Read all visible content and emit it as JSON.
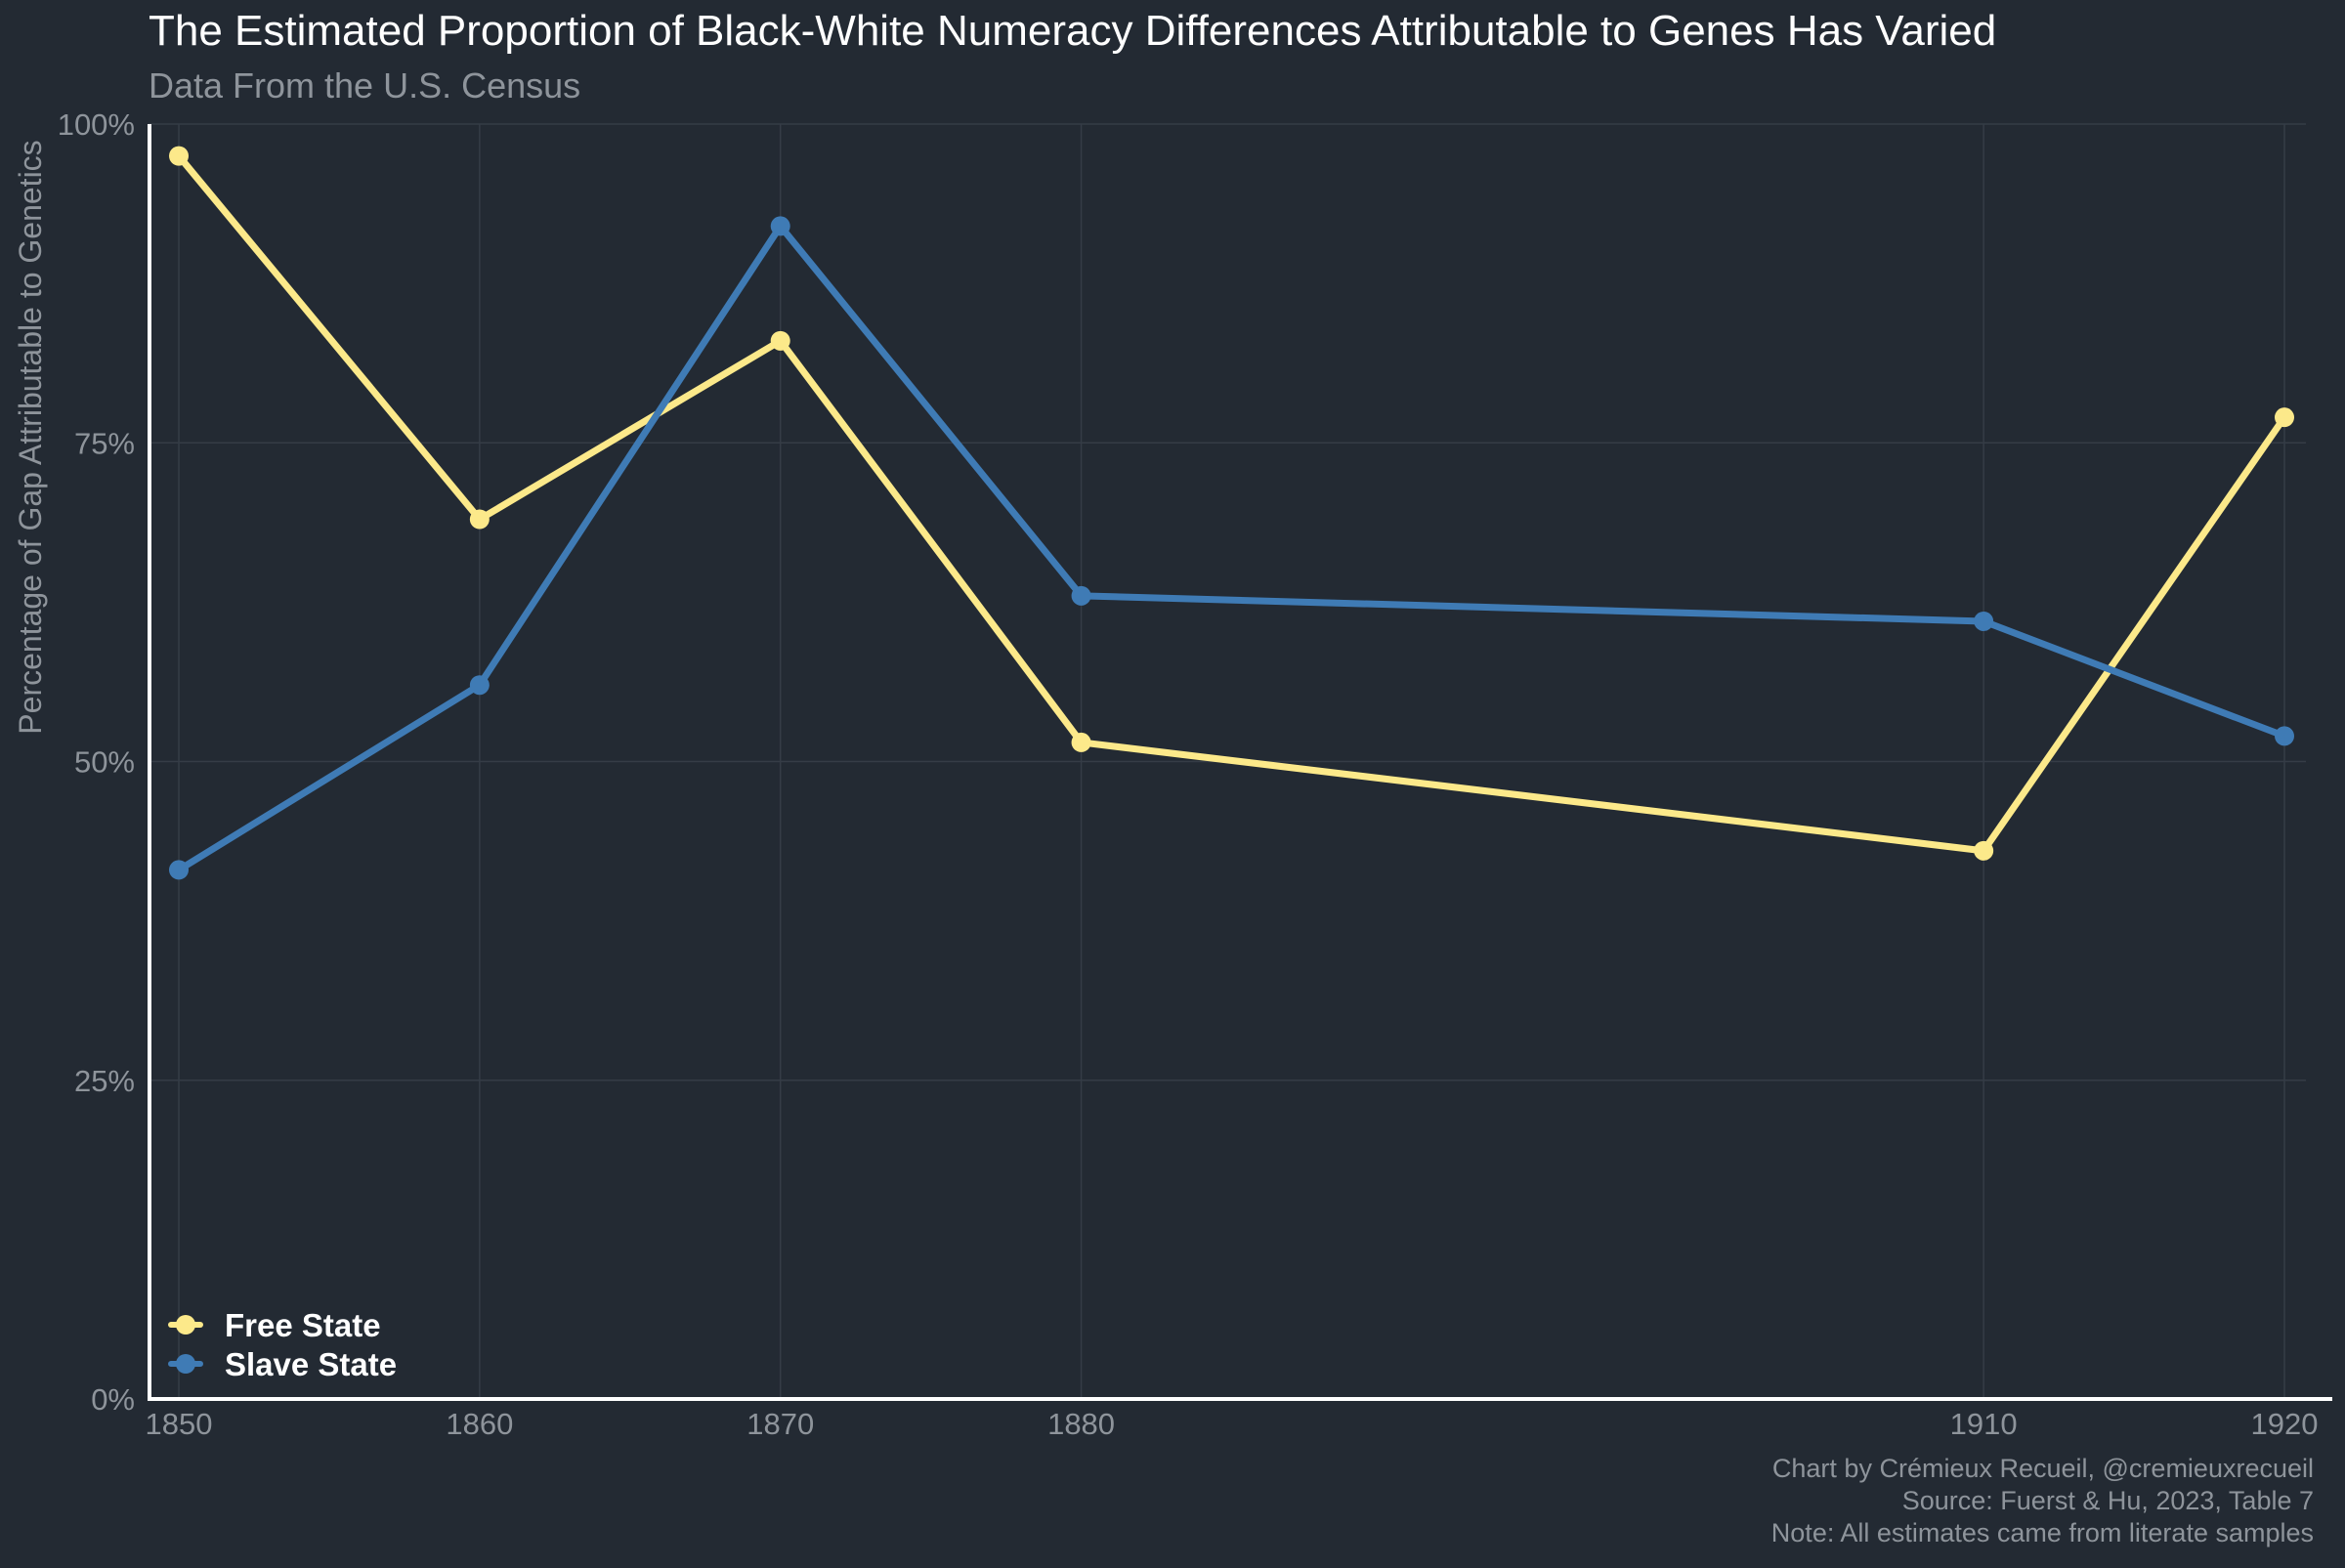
{
  "colors": {
    "background": "#232a33",
    "grid": "#353c46",
    "axis": "#ffffff",
    "title": "#ffffff",
    "muted": "#8e949b",
    "legend_text": "#ffffff"
  },
  "chart_data": {
    "type": "line",
    "title": "The Estimated Proportion of Black-White Numeracy Differences Attributable to Genes Has Varied",
    "subtitle": "Data From the U.S. Census",
    "xlabel": "",
    "ylabel": "Percentage of Gap Attributable to Genetics",
    "x": [
      1850,
      1860,
      1870,
      1880,
      1910,
      1920
    ],
    "x_tick_labels": [
      "1850",
      "1860",
      "1870",
      "1880",
      "1910",
      "1920"
    ],
    "xlim": [
      1850,
      1920
    ],
    "ylim": [
      0,
      100
    ],
    "y_ticks": [
      0,
      25,
      50,
      75,
      100
    ],
    "y_tick_labels": [
      "0%",
      "25%",
      "50%",
      "75%",
      "100%"
    ],
    "grid": true,
    "legend_position": "bottom-left",
    "series": [
      {
        "name": "Free State",
        "color": "#fce98a",
        "values": [
          97.5,
          69,
          83,
          51.5,
          43,
          77
        ]
      },
      {
        "name": "Slave State",
        "color": "#3f7bb5",
        "values": [
          41.5,
          56,
          92,
          63,
          61,
          52
        ]
      }
    ],
    "caption": [
      "Chart by Crémieux Recueil, @cremieuxrecueil",
      "Source: Fuerst & Hu, 2023, Table 7",
      "Note: All estimates came from literate samples"
    ]
  }
}
